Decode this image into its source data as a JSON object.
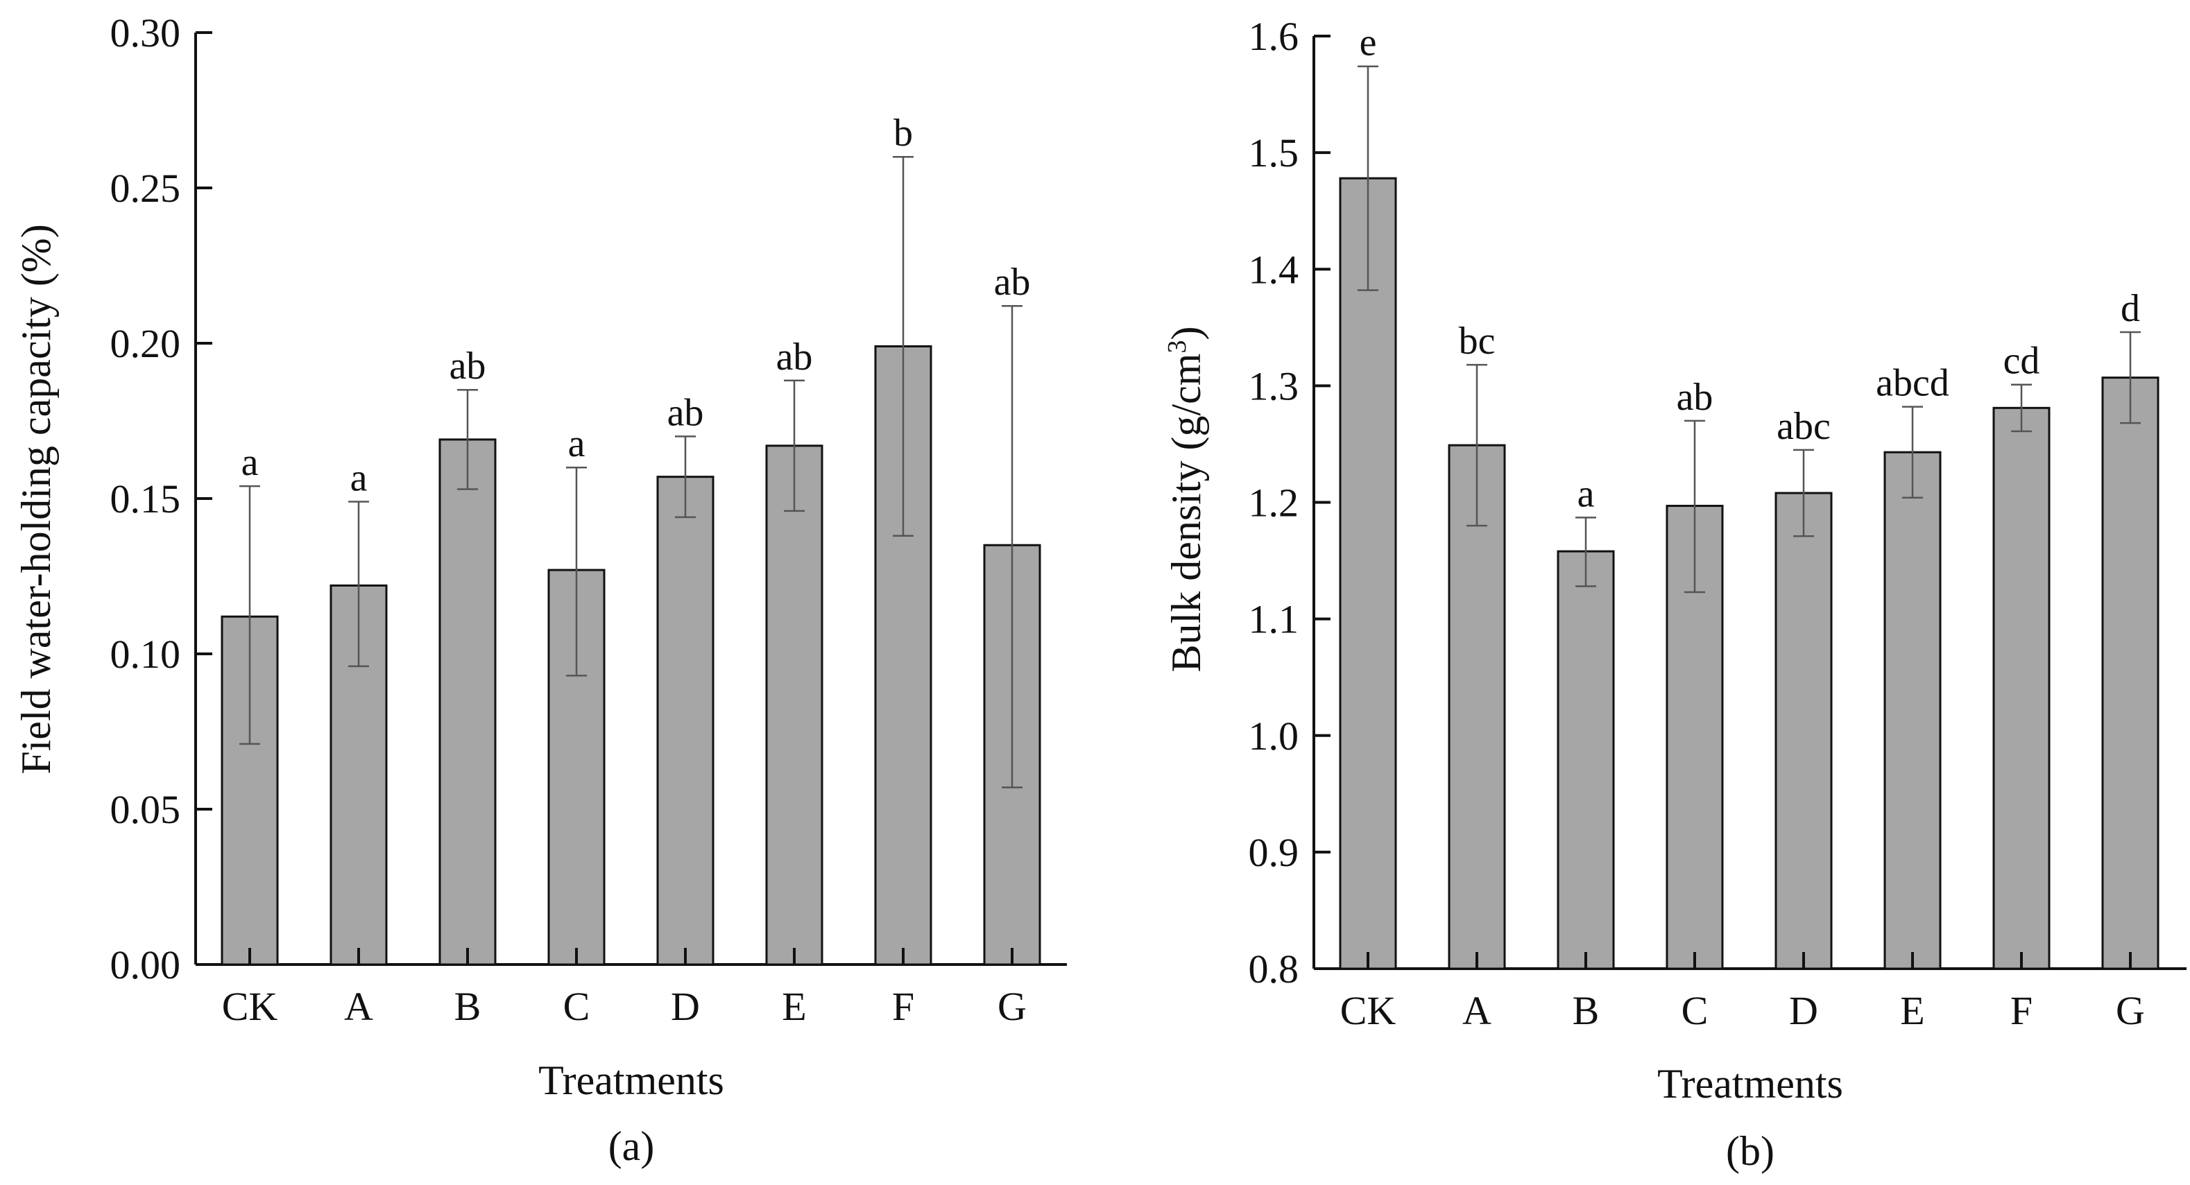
{
  "chart_data": [
    {
      "type": "bar",
      "panel_label": "(a)",
      "title": "",
      "xlabel": "Treatments",
      "ylabel": "Field water-holding capacity (%)",
      "ylim": [
        0,
        0.3
      ],
      "yticks": [
        "0.00",
        "0.05",
        "0.10",
        "0.15",
        "0.20",
        "0.25",
        "0.30"
      ],
      "categories": [
        "CK",
        "A",
        "B",
        "C",
        "D",
        "E",
        "F",
        "G"
      ],
      "values": [
        0.112,
        0.122,
        0.169,
        0.127,
        0.157,
        0.167,
        0.199,
        0.135
      ],
      "error_low": [
        0.071,
        0.096,
        0.153,
        0.093,
        0.144,
        0.146,
        0.138,
        0.057
      ],
      "error_high": [
        0.154,
        0.149,
        0.185,
        0.16,
        0.17,
        0.188,
        0.26,
        0.212
      ],
      "significance": [
        "a",
        "a",
        "ab",
        "a",
        "ab",
        "ab",
        "b",
        "ab"
      ]
    },
    {
      "type": "bar",
      "panel_label": "(b)",
      "title": "",
      "xlabel": "Treatments",
      "ylabel": "Bulk density (g/cm",
      "ylabel_superscript": "3",
      "ylabel_suffix": ")",
      "ylim": [
        0.8,
        1.6
      ],
      "yticks": [
        "0.8",
        "0.9",
        "1.0",
        "1.1",
        "1.2",
        "1.3",
        "1.4",
        "1.5",
        "1.6"
      ],
      "categories": [
        "CK",
        "A",
        "B",
        "C",
        "D",
        "E",
        "F",
        "G"
      ],
      "values": [
        1.478,
        1.249,
        1.158,
        1.197,
        1.208,
        1.243,
        1.281,
        1.307
      ],
      "error_low": [
        1.382,
        1.18,
        1.128,
        1.123,
        1.171,
        1.204,
        1.261,
        1.268
      ],
      "error_high": [
        1.574,
        1.318,
        1.187,
        1.27,
        1.245,
        1.282,
        1.301,
        1.346
      ],
      "significance": [
        "e",
        "bc",
        "a",
        "ab",
        "abc",
        "abcd",
        "cd",
        "d"
      ]
    }
  ]
}
